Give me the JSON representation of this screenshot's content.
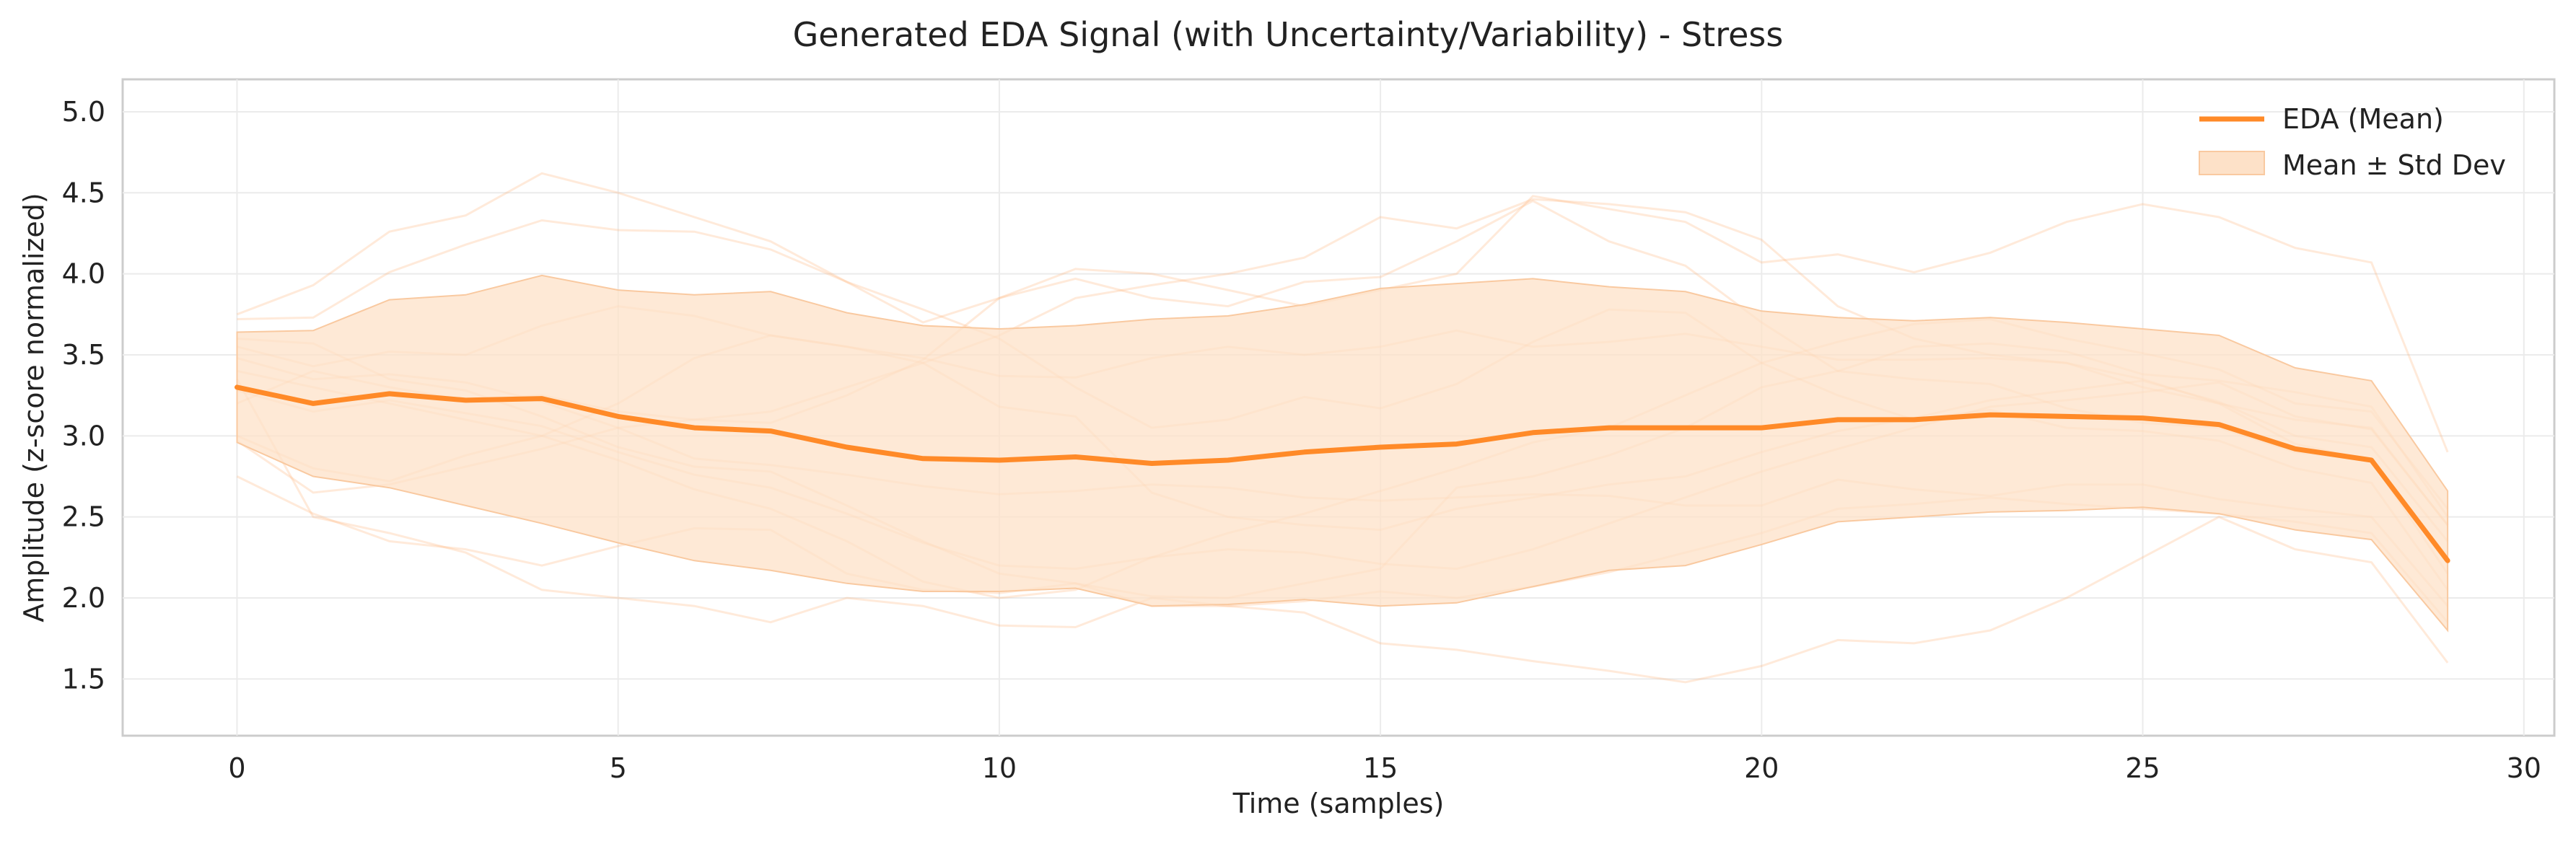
{
  "chart_data": {
    "type": "line",
    "title": "Generated EDA Signal (with Uncertainty/Variability) - Stress",
    "xlabel": "Time (samples)",
    "ylabel": "Amplitude (z-score normalized)",
    "xlim": [
      -1.5,
      30.4
    ],
    "ylim": [
      1.15,
      5.2
    ],
    "x_ticks": [
      0,
      5,
      10,
      15,
      20,
      25,
      30
    ],
    "y_ticks": [
      1.5,
      2.0,
      2.5,
      3.0,
      3.5,
      4.0,
      4.5,
      5.0
    ],
    "x_tick_labels": [
      "0",
      "5",
      "10",
      "15",
      "20",
      "25",
      "30"
    ],
    "y_tick_labels": [
      "1.5",
      "2.0",
      "2.5",
      "3.0",
      "3.5",
      "4.0",
      "4.5",
      "5.0"
    ],
    "grid": true,
    "legend_position": "top-right",
    "colors": {
      "mean": "#ff8a28",
      "band": "#fde1c8",
      "band_edge": "#f9c9a0",
      "sample": "#ffb27a"
    },
    "x": [
      0,
      1,
      2,
      3,
      4,
      5,
      6,
      7,
      8,
      9,
      10,
      11,
      12,
      13,
      14,
      15,
      16,
      17,
      18,
      19,
      20,
      21,
      22,
      23,
      24,
      25,
      26,
      27,
      28,
      29
    ],
    "series": [
      {
        "name": "EDA (Mean)",
        "kind": "line",
        "values": [
          3.3,
          3.2,
          3.26,
          3.22,
          3.23,
          3.12,
          3.05,
          3.03,
          2.93,
          2.86,
          2.85,
          2.87,
          2.83,
          2.85,
          2.9,
          2.93,
          2.95,
          3.02,
          3.05,
          3.05,
          3.05,
          3.1,
          3.1,
          3.13,
          3.12,
          3.11,
          3.07,
          2.92,
          2.85,
          2.23
        ]
      },
      {
        "name": "Mean ± Std Dev",
        "kind": "band",
        "upper": [
          3.64,
          3.65,
          3.84,
          3.87,
          3.99,
          3.9,
          3.87,
          3.89,
          3.76,
          3.68,
          3.66,
          3.68,
          3.72,
          3.74,
          3.81,
          3.91,
          3.94,
          3.97,
          3.92,
          3.89,
          3.77,
          3.73,
          3.71,
          3.73,
          3.7,
          3.66,
          3.62,
          3.42,
          3.34,
          2.66
        ],
        "lower": [
          2.96,
          2.75,
          2.68,
          2.57,
          2.46,
          2.34,
          2.23,
          2.17,
          2.09,
          2.04,
          2.04,
          2.06,
          1.95,
          1.96,
          1.99,
          1.95,
          1.97,
          2.07,
          2.17,
          2.2,
          2.33,
          2.47,
          2.5,
          2.53,
          2.54,
          2.56,
          2.52,
          2.42,
          2.36,
          1.8
        ]
      }
    ],
    "samples": [
      [
        3.75,
        3.93,
        4.26,
        4.36,
        4.62,
        4.5,
        4.35,
        4.2,
        3.95,
        3.7,
        3.85,
        4.03,
        4.0,
        3.9,
        3.8,
        3.9,
        4.0,
        4.48,
        4.4,
        4.32,
        4.07,
        4.12,
        4.01,
        4.13,
        4.32,
        4.43,
        4.35,
        4.16,
        4.07,
        2.9
      ],
      [
        3.72,
        3.73,
        4.01,
        4.18,
        4.33,
        4.27,
        4.26,
        4.15,
        3.95,
        3.78,
        3.6,
        3.3,
        3.05,
        3.1,
        3.24,
        3.17,
        3.32,
        3.58,
        3.78,
        3.76,
        3.45,
        3.25,
        3.1,
        3.16,
        3.05,
        3.03,
        2.97,
        2.8,
        2.71,
        2.05
      ],
      [
        3.55,
        3.43,
        3.52,
        3.5,
        3.68,
        3.8,
        3.74,
        3.62,
        3.55,
        3.48,
        3.37,
        3.36,
        3.48,
        3.55,
        3.5,
        3.55,
        3.65,
        3.55,
        3.58,
        3.63,
        3.55,
        3.47,
        3.47,
        3.48,
        3.45,
        3.35,
        3.2,
        2.95,
        2.85,
        2.15
      ],
      [
        3.48,
        3.35,
        3.38,
        3.33,
        3.21,
        3.05,
        2.86,
        2.82,
        2.76,
        2.69,
        2.64,
        2.66,
        2.7,
        2.68,
        2.62,
        2.6,
        2.62,
        2.64,
        2.63,
        2.57,
        2.57,
        2.73,
        2.67,
        2.63,
        2.7,
        2.7,
        2.61,
        2.55,
        2.5,
        1.95
      ],
      [
        3.4,
        3.3,
        3.2,
        3.1,
        3.0,
        2.85,
        2.67,
        2.55,
        2.35,
        2.1,
        2.0,
        2.05,
        2.25,
        2.4,
        2.52,
        2.66,
        2.8,
        2.96,
        3.05,
        3.25,
        3.45,
        3.58,
        3.69,
        3.72,
        3.6,
        3.51,
        3.41,
        3.2,
        3.15,
        2.55
      ],
      [
        3.28,
        3.15,
        3.22,
        3.14,
        3.06,
        2.9,
        2.76,
        2.68,
        2.52,
        2.34,
        2.2,
        2.18,
        2.25,
        2.3,
        2.28,
        2.21,
        2.18,
        2.3,
        2.46,
        2.62,
        2.78,
        2.92,
        3.05,
        3.18,
        3.22,
        3.27,
        3.33,
        3.12,
        3.04,
        2.45
      ],
      [
        3.0,
        2.8,
        2.72,
        2.88,
        3.0,
        3.2,
        3.48,
        3.62,
        3.55,
        3.45,
        3.18,
        3.12,
        2.65,
        2.5,
        2.45,
        2.42,
        2.55,
        2.62,
        2.7,
        2.75,
        2.9,
        3.03,
        3.11,
        3.22,
        3.28,
        3.34,
        3.21,
        3.0,
        2.93,
        2.35
      ],
      [
        2.97,
        2.65,
        2.7,
        2.81,
        2.92,
        3.05,
        3.1,
        3.08,
        3.25,
        3.47,
        3.85,
        3.97,
        3.85,
        3.8,
        3.95,
        3.98,
        4.2,
        4.45,
        4.2,
        4.05,
        3.7,
        3.4,
        3.35,
        3.32,
        3.17,
        3.08,
        3.05,
        2.9,
        2.85,
        2.25
      ],
      [
        2.75,
        2.52,
        2.35,
        2.3,
        2.2,
        2.32,
        2.43,
        2.42,
        2.15,
        2.05,
        2.03,
        2.09,
        2.01,
        2.0,
        2.09,
        2.18,
        2.68,
        2.75,
        2.88,
        3.05,
        3.3,
        3.4,
        3.55,
        3.57,
        3.52,
        3.38,
        3.34,
        3.27,
        3.18,
        2.5
      ],
      [
        3.6,
        3.57,
        3.35,
        3.28,
        3.12,
        2.93,
        2.81,
        2.78,
        2.57,
        2.35,
        2.15,
        2.09,
        1.95,
        1.95,
        1.98,
        2.04,
        2.0,
        2.07,
        2.16,
        2.28,
        2.4,
        2.55,
        2.58,
        2.62,
        2.58,
        2.55,
        2.52,
        2.47,
        2.4,
        1.85
      ],
      [
        3.35,
        2.5,
        2.4,
        2.28,
        2.05,
        2.0,
        1.95,
        1.85,
        2.0,
        1.95,
        1.83,
        1.82,
        2.0,
        1.95,
        1.91,
        1.72,
        1.68,
        1.61,
        1.55,
        1.48,
        1.58,
        1.74,
        1.72,
        1.8,
        2.0,
        2.25,
        2.5,
        2.3,
        2.22,
        1.6
      ],
      [
        3.2,
        3.4,
        3.3,
        3.22,
        3.25,
        3.15,
        3.1,
        3.15,
        3.3,
        3.45,
        3.62,
        3.85,
        3.93,
        4.0,
        4.1,
        4.35,
        4.28,
        4.46,
        4.43,
        4.38,
        4.21,
        3.8,
        3.6,
        3.5,
        3.45,
        3.3,
        3.2,
        3.1,
        3.05,
        2.45
      ]
    ]
  }
}
